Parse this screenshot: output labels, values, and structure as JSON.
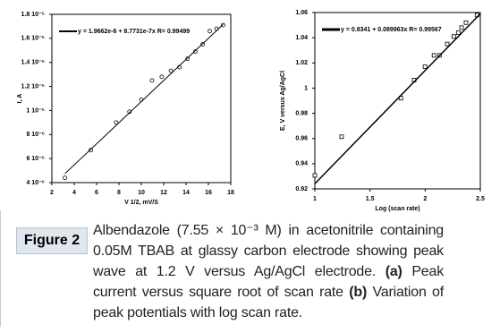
{
  "charts": [
    {
      "type": "scatter",
      "x_label": "V 1/2, mV/S",
      "y_label": "I, A",
      "xlim": [
        2,
        18
      ],
      "xticks": [
        2,
        4,
        6,
        8,
        10,
        12,
        14,
        16,
        18
      ],
      "ylim": [
        4e-06,
        1.8e-05
      ],
      "yticks": [
        {
          "value": 4e-06,
          "label": "4 10⁻⁶"
        },
        {
          "value": 6e-06,
          "label": "6 10⁻⁶"
        },
        {
          "value": 8e-06,
          "label": "8 10⁻⁶"
        },
        {
          "value": 1e-05,
          "label": "1 10⁻⁵"
        },
        {
          "value": 1.2e-05,
          "label": "1.2 10⁻⁵"
        },
        {
          "value": 1.4e-05,
          "label": "1.4 10⁻⁵"
        },
        {
          "value": 1.6e-05,
          "label": "1.6 10⁻⁵"
        },
        {
          "value": 1.8e-05,
          "label": "1.8 10⁻⁵"
        }
      ],
      "series": [
        {
          "marker": "circle",
          "color": "#000000",
          "x": [
            3.16,
            5.48,
            7.75,
            8.94,
            10,
            10.95,
            11.83,
            12.65,
            13.42,
            14.14,
            14.83,
            15.49,
            16.12,
            16.73,
            17.32
          ],
          "values": [
            4.4e-06,
            6.7e-06,
            9e-06,
            9.9e-06,
            1.09e-05,
            1.25e-05,
            1.28e-05,
            1.33e-05,
            1.36e-05,
            1.43e-05,
            1.49e-05,
            1.55e-05,
            1.66e-05,
            1.68e-05,
            1.71e-05
          ]
        },
        {
          "name": "y = 1.9662e-6 + 8.7731e-7x  R= 0.99499",
          "marker": "line",
          "color": "#000000",
          "width": 1,
          "x": [
            3.16,
            17.32
          ],
          "values": [
            4.74e-06,
            1.716e-05
          ]
        }
      ]
    },
    {
      "type": "scatter",
      "x_label": "Log (scan rate)",
      "y_label": "E, V versus Ag/AgCl",
      "xlim": [
        1,
        2.5
      ],
      "xticks": [
        1,
        1.5,
        2,
        2.5
      ],
      "ylim": [
        0.92,
        1.06
      ],
      "yticks": [
        0.92,
        0.94,
        0.96,
        0.98,
        1,
        1.02,
        1.04,
        1.06
      ],
      "series": [
        {
          "marker": "square",
          "color": "#000000",
          "x": [
            1.0,
            1.243,
            1.78,
            1.9,
            1.998,
            2.08,
            2.13,
            2.2,
            2.26,
            2.3,
            2.33,
            2.37,
            2.47
          ],
          "values": [
            0.9307,
            0.9614,
            0.992,
            1.0064,
            1.017,
            1.026,
            1.026,
            1.035,
            1.041,
            1.044,
            1.048,
            1.052,
            1.058
          ]
        },
        {
          "name": "y = 0.8341 + 0.089963x  R= 0.99567",
          "marker": "line",
          "color": "#000000",
          "width": 1.5,
          "x": [
            1,
            2.5
          ],
          "values": [
            0.9241,
            1.059
          ]
        }
      ]
    }
  ],
  "caption": {
    "label": "Figure 2",
    "parts": [
      {
        "text": "Albendazole (7.55 × 10⁻³ M) in acetonitrile containing 0.05M TBAB at glassy carbon electrode showing peak wave at 1.2 V versus Ag/AgCl electrode.",
        "bold": false
      },
      {
        "text": " (a)",
        "bold": true
      },
      {
        "text": " Peak current versus square root of scan rate ",
        "bold": false
      },
      {
        "text": "(b)",
        "bold": true
      },
      {
        "text": " Variation of peak potentials with log scan rate.",
        "bold": false
      }
    ]
  }
}
